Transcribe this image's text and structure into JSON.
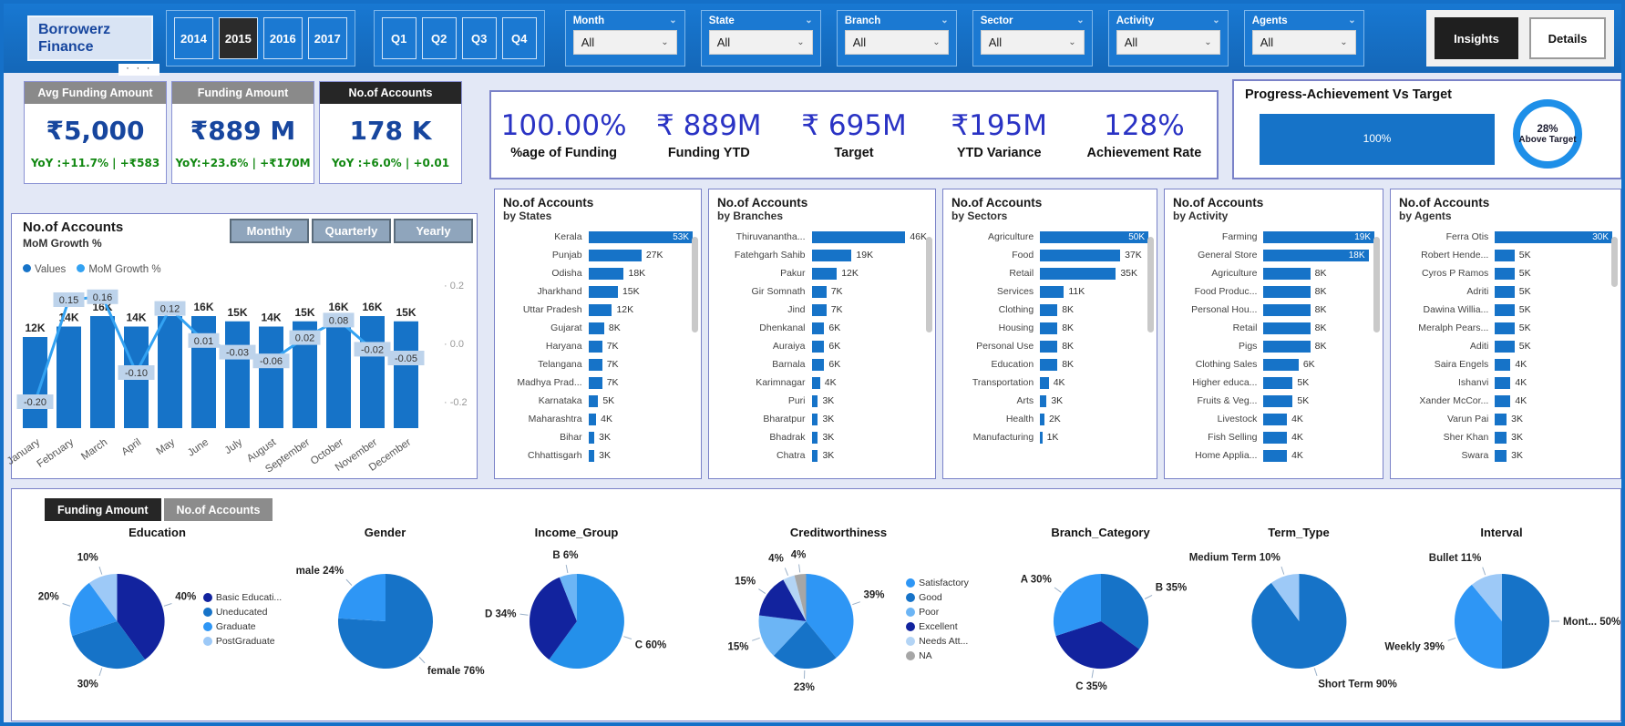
{
  "topbar": {
    "brand": {
      "line1": "Borrowerz",
      "line2": "Finance"
    },
    "years": [
      {
        "label": "2014",
        "selected": false
      },
      {
        "label": "2015",
        "selected": true
      },
      {
        "label": "2016",
        "selected": false
      },
      {
        "label": "2017",
        "selected": false
      }
    ],
    "quarters": [
      "Q1",
      "Q2",
      "Q3",
      "Q4"
    ],
    "filters": [
      {
        "label": "Month",
        "value": "All"
      },
      {
        "label": "State",
        "value": "All"
      },
      {
        "label": "Branch",
        "value": "All"
      },
      {
        "label": "Sector",
        "value": "All"
      },
      {
        "label": "Activity",
        "value": "All"
      },
      {
        "label": "Agents",
        "value": "All"
      }
    ],
    "insights_label": "Insights",
    "details_label": "Details"
  },
  "more_options": "· · ·",
  "kpi_cards": [
    {
      "title": "Avg Funding Amount",
      "value": "₹5,000",
      "yoy": "YoY :+11.7% | +₹583",
      "dark": false
    },
    {
      "title": "Funding Amount",
      "value": "₹889 M",
      "yoy": "YoY:+23.6% | +₹170M",
      "dark": false
    },
    {
      "title": "No.of Accounts",
      "value": "178 K",
      "yoy": "YoY :+6.0% | +0.01",
      "dark": true
    }
  ],
  "kpi_strip": {
    "items": [
      {
        "value": "100.00%",
        "label": "%age of Funding"
      },
      {
        "value": "₹ 889M",
        "label": "Funding YTD"
      },
      {
        "value": "₹ 695M",
        "label": "Target"
      },
      {
        "value": "₹195M",
        "label": "YTD Variance"
      },
      {
        "value": "128%",
        "label": "Achievement Rate"
      }
    ]
  },
  "progress": {
    "title": "Progress-Achievement Vs Target",
    "bar_label": "100%",
    "badge_line1": "28%",
    "badge_line2": "Above Target"
  },
  "bottom_tabs": {
    "items": [
      "Funding Amount",
      "No.of Accounts"
    ],
    "active": "Funding Amount"
  },
  "colors": {
    "bar_blue": "#1673C8",
    "line_blue": "#33A2F2",
    "navy": "#12239E",
    "bright_blue": "#2E96F5",
    "light_blue": "#9DC9F7",
    "pale_blue": "#B3D4F5",
    "mid_light_blue": "#6CB5F5",
    "gray": "#A6A6A6",
    "chip_bg": "#BDD3EB"
  },
  "chart_data": [
    {
      "type": "combo-bar-line",
      "title": "No.of Accounts",
      "subtitle": "MoM Growth %",
      "range_buttons": [
        "Monthly",
        "Quarterly",
        "Yearly"
      ],
      "legend": [
        "Values",
        "MoM Growth %"
      ],
      "categories": [
        "January",
        "February",
        "March",
        "April",
        "May",
        "June",
        "July",
        "August",
        "September",
        "October",
        "November",
        "December"
      ],
      "series": [
        {
          "name": "Values",
          "values": [
            12000,
            14000,
            16000,
            14000,
            16000,
            16000,
            15000,
            14000,
            15000,
            16000,
            16000,
            15000
          ],
          "labels": [
            "12K",
            "14K",
            "16K",
            "14K",
            "16K",
            "16K",
            "15K",
            "14K",
            "15K",
            "16K",
            "16K",
            "15K"
          ]
        },
        {
          "name": "MoM Growth %",
          "values": [
            -0.2,
            0.15,
            0.16,
            -0.1,
            0.12,
            0.01,
            -0.03,
            -0.06,
            0.02,
            0.08,
            -0.02,
            -0.05
          ]
        }
      ],
      "y2_ticks": [
        "0.2",
        "0.0",
        "-0.2"
      ],
      "y2lim": [
        -0.25,
        0.3
      ]
    },
    {
      "type": "bar",
      "title": "No.of Accounts",
      "subtitle": "by States",
      "inside_count": 1,
      "categories": [
        "Kerala",
        "Punjab",
        "Odisha",
        "Jharkhand",
        "Uttar Pradesh",
        "Gujarat",
        "Haryana",
        "Telangana",
        "Madhya Prad...",
        "Karnataka",
        "Maharashtra",
        "Bihar",
        "Chhattisgarh"
      ],
      "values": [
        53,
        27,
        18,
        15,
        12,
        8,
        7,
        7,
        7,
        5,
        4,
        3,
        3
      ],
      "unit": "K"
    },
    {
      "type": "bar",
      "title": "No.of Accounts",
      "subtitle": "by Branches",
      "inside_count": 0,
      "categories": [
        "Thiruvanantha...",
        "Fatehgarh Sahib",
        "Pakur",
        "Gir Somnath",
        "Jind",
        "Dhenkanal",
        "Auraiya",
        "Barnala",
        "Karimnagar",
        "Puri",
        "Bharatpur",
        "Bhadrak",
        "Chatra"
      ],
      "values": [
        46,
        19,
        12,
        7,
        7,
        6,
        6,
        6,
        4,
        3,
        3,
        3,
        3
      ],
      "unit": "K"
    },
    {
      "type": "bar",
      "title": "No.of Accounts",
      "subtitle": "by Sectors",
      "inside_count": 1,
      "categories": [
        "Agriculture",
        "Food",
        "Retail",
        "Services",
        "Clothing",
        "Housing",
        "Personal Use",
        "Education",
        "Transportation",
        "Arts",
        "Health",
        "Manufacturing"
      ],
      "values": [
        50,
        37,
        35,
        11,
        8,
        8,
        8,
        8,
        4,
        3,
        2,
        1
      ],
      "unit": "K"
    },
    {
      "type": "bar",
      "title": "No.of Accounts",
      "subtitle": "by Activity",
      "inside_count": 2,
      "categories": [
        "Farming",
        "General Store",
        "Agriculture",
        "Food Produc...",
        "Personal Hou...",
        "Retail",
        "Pigs",
        "Clothing Sales",
        "Higher educa...",
        "Fruits & Veg...",
        "Livestock",
        "Fish Selling",
        "Home Applia..."
      ],
      "values": [
        19,
        18,
        8,
        8,
        8,
        8,
        8,
        6,
        5,
        5,
        4,
        4,
        4
      ],
      "unit": "K"
    },
    {
      "type": "bar",
      "title": "No.of Accounts",
      "subtitle": "by Agents",
      "inside_count": 1,
      "categories": [
        "Ferra Otis",
        "Robert Hende...",
        "Cyros P Ramos",
        "Adriti",
        "Dawina Willia...",
        "Meralph Pears...",
        "Aditi",
        "Saira Engels",
        "Ishanvi",
        "Xander McCor...",
        "Varun Pai",
        "Sher Khan",
        "Swara"
      ],
      "values": [
        30,
        5,
        5,
        5,
        5,
        5,
        5,
        4,
        4,
        4,
        3,
        3,
        3
      ],
      "unit": "K"
    },
    {
      "type": "pie",
      "title": "Education",
      "show_legend": true,
      "slices": [
        {
          "label": "Basic Educati...",
          "pct": 40,
          "callout": "40%",
          "color": "#12239E"
        },
        {
          "label": "Uneducated",
          "pct": 30,
          "callout": "30%",
          "color": "#1673C8"
        },
        {
          "label": "Graduate",
          "pct": 20,
          "callout": "20%",
          "color": "#2E96F5"
        },
        {
          "label": "PostGraduate",
          "pct": 10,
          "callout": "10%",
          "color": "#9DC9F7"
        }
      ]
    },
    {
      "type": "pie",
      "title": "Gender",
      "show_legend": false,
      "slices": [
        {
          "label": "female",
          "pct": 76,
          "callout": "female 76%",
          "color": "#1673C8"
        },
        {
          "label": "male",
          "pct": 24,
          "callout": "male 24%",
          "color": "#2E96F5"
        }
      ]
    },
    {
      "type": "pie",
      "title": "Income_Group",
      "show_legend": false,
      "slices": [
        {
          "label": "C",
          "pct": 60,
          "callout": "C 60%",
          "color": "#2490EA"
        },
        {
          "label": "D",
          "pct": 34,
          "callout": "D 34%",
          "color": "#12239E"
        },
        {
          "label": "B",
          "pct": 6,
          "callout": "B 6%",
          "color": "#6CB5F5"
        }
      ]
    },
    {
      "type": "pie",
      "title": "Creditworthiness",
      "show_legend": true,
      "slices": [
        {
          "label": "Satisfactory",
          "pct": 39,
          "callout": "39%",
          "color": "#2E96F5"
        },
        {
          "label": "Good",
          "pct": 23,
          "callout": "23%",
          "color": "#1673C8"
        },
        {
          "label": "Poor",
          "pct": 15,
          "callout": "15%",
          "color": "#6CB5F5"
        },
        {
          "label": "Excellent",
          "pct": 15,
          "callout": "15%",
          "color": "#12239E"
        },
        {
          "label": "Needs Att...",
          "pct": 4,
          "callout": "4%",
          "color": "#B3D4F5"
        },
        {
          "label": "NA",
          "pct": 4,
          "callout": "4%",
          "color": "#A6A6A6"
        }
      ]
    },
    {
      "type": "pie",
      "title": "Branch_Category",
      "show_legend": false,
      "slices": [
        {
          "label": "B",
          "pct": 35,
          "callout": "B 35%",
          "color": "#1673C8"
        },
        {
          "label": "C",
          "pct": 35,
          "callout": "C 35%",
          "color": "#12239E"
        },
        {
          "label": "A",
          "pct": 30,
          "callout": "A 30%",
          "color": "#2E96F5"
        }
      ]
    },
    {
      "type": "pie",
      "title": "Term_Type",
      "show_legend": false,
      "slices": [
        {
          "label": "Short Term",
          "pct": 90,
          "callout": "Short Term 90%",
          "color": "#1673C8"
        },
        {
          "label": "Medium Term",
          "pct": 10,
          "callout": "Medium Term 10%",
          "color": "#9DC9F7"
        }
      ]
    },
    {
      "type": "pie",
      "title": "Interval",
      "show_legend": false,
      "slices": [
        {
          "label": "Mont...",
          "pct": 50,
          "callout": "Mont... 50%",
          "color": "#1673C8"
        },
        {
          "label": "Weekly",
          "pct": 39,
          "callout": "Weekly 39%",
          "color": "#2E96F5"
        },
        {
          "label": "Bullet",
          "pct": 11,
          "callout": "Bullet 11%",
          "color": "#9DC9F7"
        }
      ]
    }
  ]
}
